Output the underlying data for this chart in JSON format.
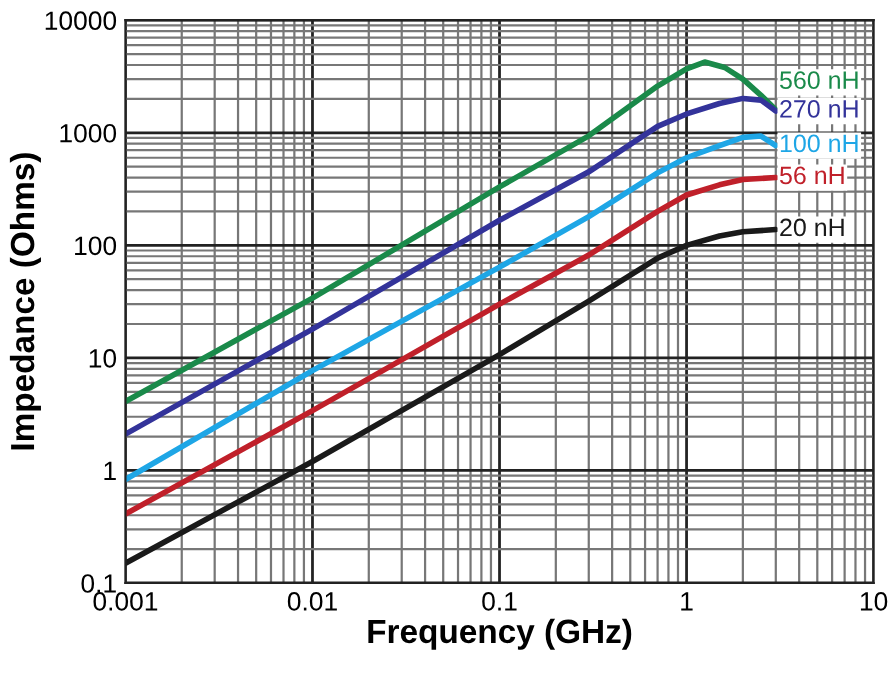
{
  "chart_data": {
    "type": "line",
    "xlabel": "Frequency (GHz)",
    "ylabel": "Impedance (Ohms)",
    "log": "xy",
    "grid": true,
    "legend": false,
    "marker": "none",
    "line_style": "solid",
    "xlim": [
      0.001,
      10
    ],
    "xticks": [
      0.001,
      0.01,
      0.1,
      1,
      10
    ],
    "ylim": [
      0.1,
      10000
    ],
    "yticks": [
      0.1,
      1,
      10,
      100,
      1000,
      10000
    ],
    "series": [
      {
        "name": "560 nH",
        "color": "#1a8a4a",
        "x": [
          0.001,
          0.01,
          0.1,
          0.3,
          0.7,
          1,
          1.25,
          1.6,
          2,
          2.5,
          3
        ],
        "values": [
          4.1,
          34,
          330,
          940,
          2600,
          3700,
          4250,
          3800,
          3000,
          2150,
          1600
        ]
      },
      {
        "name": "270 nH",
        "color": "#33339a",
        "x": [
          0.001,
          0.01,
          0.1,
          0.3,
          0.7,
          1,
          1.5,
          2,
          2.5,
          3
        ],
        "values": [
          2.1,
          18,
          167,
          450,
          1140,
          1470,
          1820,
          2020,
          1950,
          1560
        ]
      },
      {
        "name": "100 nH",
        "color": "#1ea6e6",
        "x": [
          0.001,
          0.01,
          0.1,
          0.3,
          0.7,
          1,
          1.5,
          2,
          2.5,
          3
        ],
        "values": [
          0.83,
          7.7,
          64,
          180,
          440,
          600,
          770,
          910,
          935,
          770
        ]
      },
      {
        "name": "56 nH",
        "color": "#c0202a",
        "x": [
          0.001,
          0.01,
          0.1,
          0.3,
          0.7,
          1,
          1.5,
          2,
          3
        ],
        "values": [
          0.41,
          3.4,
          30,
          82,
          200,
          280,
          345,
          385,
          400
        ]
      },
      {
        "name": "20 nH",
        "color": "#1a1a1a",
        "x": [
          0.001,
          0.01,
          0.1,
          0.3,
          0.7,
          1,
          1.5,
          2,
          3
        ],
        "values": [
          0.15,
          1.2,
          10.7,
          32,
          77,
          100,
          121,
          132,
          138
        ]
      }
    ]
  }
}
